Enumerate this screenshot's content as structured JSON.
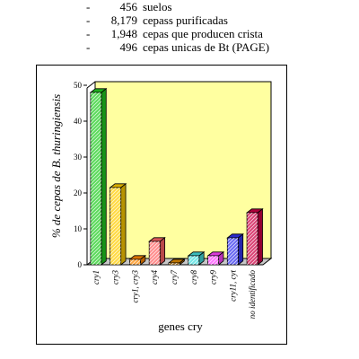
{
  "stats": [
    {
      "value": "456",
      "text": "suelos"
    },
    {
      "value": "8,179",
      "text": "cepass purificadas"
    },
    {
      "value": "1,948",
      "text": "cepas que producen crista"
    },
    {
      "value": "496",
      "text": "cepas unicas de Bt (PAGE)"
    }
  ],
  "colors": {
    "plot_background": "#ffffa0",
    "floor": "#c8c8c8",
    "bars": [
      "#22cc22",
      "#ffcc00",
      "#ff8800",
      "#ff6666",
      "#dd8800",
      "#44dddd",
      "#ff44ff",
      "#3333ee",
      "#cc0044"
    ]
  },
  "chart_data": {
    "type": "bar",
    "style": "3d",
    "categories": [
      "cry1",
      "cry3",
      "cry1, cry3",
      "cry4",
      "cry7",
      "cry8",
      "cry9",
      "cry11, cyt",
      "no identificado"
    ],
    "values": [
      48,
      21.5,
      1.5,
      6.5,
      0.5,
      2.5,
      2.5,
      7.5,
      14.5
    ],
    "ylabel": "% de cepas de B. thuringiensis",
    "xlabel": "genes cry",
    "ylim": [
      0,
      50
    ],
    "yticks": [
      0,
      10,
      20,
      30,
      40,
      50
    ],
    "grid": false,
    "legend": "none"
  }
}
